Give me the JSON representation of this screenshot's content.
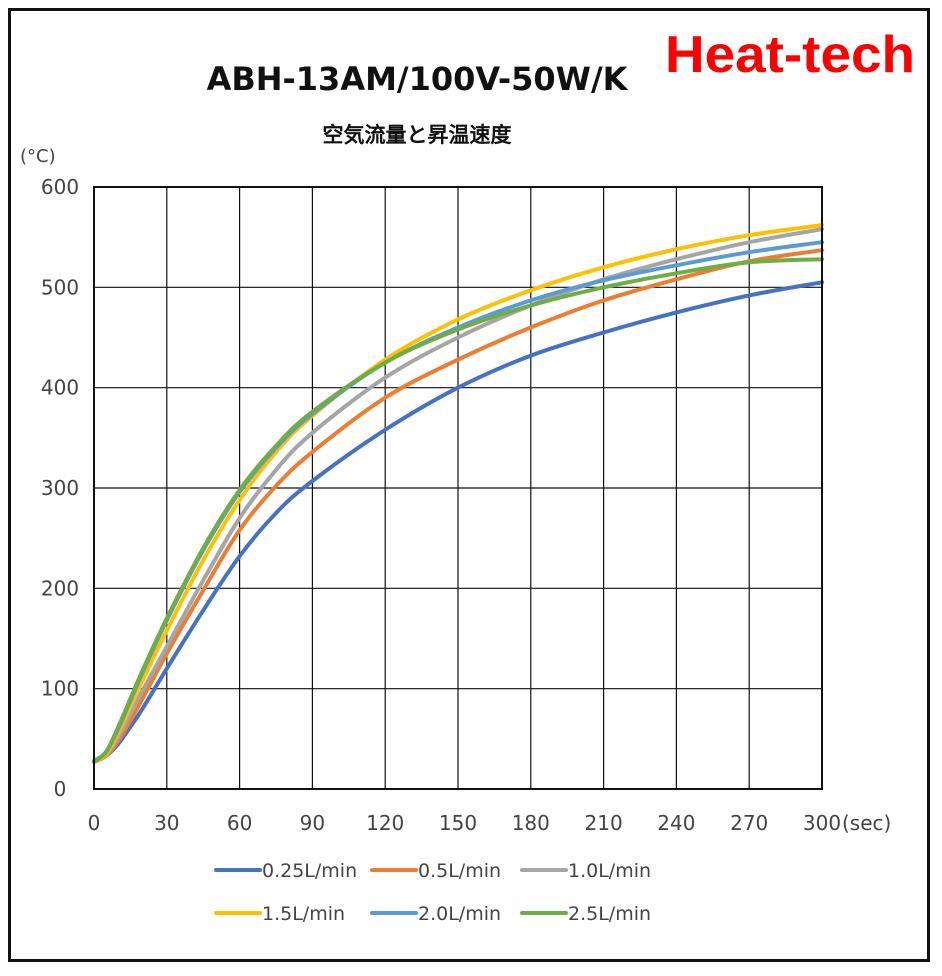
{
  "brand": {
    "text": "Heat-tech",
    "color": "#ff0000"
  },
  "chart_data": {
    "type": "line",
    "title": "ABH-13AM/100V-50W/K",
    "subtitle": "空気流量と昇温速度",
    "ylabel": "(°C)",
    "xlabel": "(sec)",
    "xlim": [
      0,
      300
    ],
    "ylim": [
      0,
      600
    ],
    "xticks": [
      0,
      30,
      60,
      90,
      120,
      150,
      180,
      210,
      240,
      270,
      300
    ],
    "yticks": [
      0,
      100,
      200,
      300,
      400,
      500,
      600
    ],
    "grid": true,
    "legend": "bottom",
    "x": [
      0,
      5,
      10,
      15,
      20,
      30,
      45,
      60,
      75,
      90,
      120,
      150,
      180,
      210,
      240,
      270,
      300
    ],
    "series": [
      {
        "name": "0.25L/min",
        "color": "#4472c4",
        "values": [
          27,
          33,
          45,
          62,
          80,
          120,
          178,
          232,
          275,
          307,
          358,
          400,
          432,
          455,
          475,
          492,
          505
        ]
      },
      {
        "name": "0.5L/min",
        "color": "#ed7d31",
        "values": [
          27,
          33,
          48,
          68,
          90,
          135,
          198,
          258,
          302,
          336,
          390,
          428,
          460,
          487,
          508,
          526,
          537
        ]
      },
      {
        "name": "1.0L/min",
        "color": "#a5a5a5",
        "values": [
          27,
          34,
          52,
          75,
          98,
          142,
          208,
          270,
          318,
          355,
          410,
          450,
          482,
          508,
          528,
          545,
          558
        ]
      },
      {
        "name": "1.5L/min",
        "color": "#ffc000",
        "values": [
          27,
          35,
          56,
          82,
          108,
          158,
          228,
          288,
          336,
          372,
          428,
          468,
          497,
          520,
          538,
          552,
          562
        ]
      },
      {
        "name": "2.0L/min",
        "color": "#5b9bd5",
        "values": [
          28,
          37,
          60,
          88,
          116,
          168,
          238,
          296,
          340,
          374,
          425,
          460,
          487,
          507,
          522,
          535,
          545
        ]
      },
      {
        "name": "2.5L/min",
        "color": "#70ad47",
        "values": [
          27,
          37,
          62,
          90,
          118,
          170,
          240,
          298,
          342,
          376,
          425,
          458,
          482,
          500,
          514,
          525,
          528
        ]
      }
    ]
  }
}
